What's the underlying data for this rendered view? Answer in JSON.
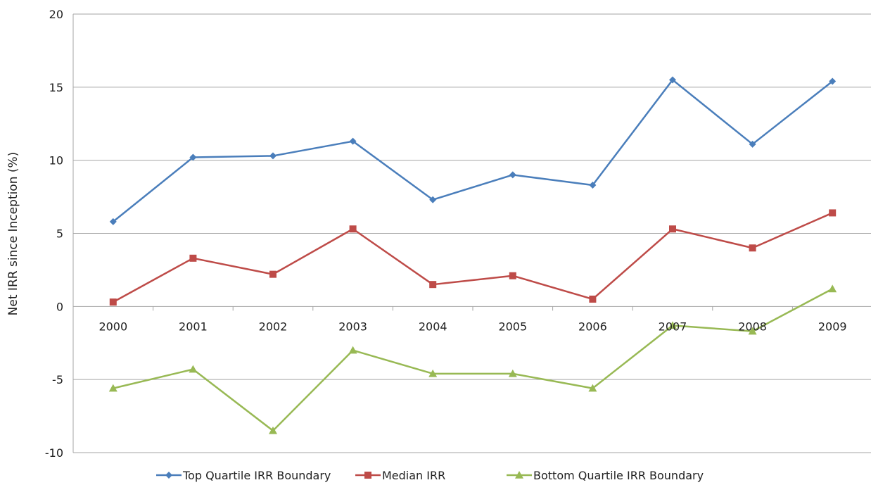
{
  "chart_data": {
    "type": "line",
    "title": "",
    "xlabel": "",
    "ylabel": "Net IRR since Inception (%)",
    "categories": [
      "2000",
      "2001",
      "2002",
      "2003",
      "2004",
      "2005",
      "2006",
      "2007",
      "2008",
      "2009"
    ],
    "ylim": [
      -10,
      20
    ],
    "yticks": [
      -10,
      -5,
      0,
      5,
      10,
      15,
      20
    ],
    "grid": "horizontal",
    "legend_position": "bottom",
    "series": [
      {
        "name": "Top Quartile IRR Boundary",
        "color": "#4a7ebb",
        "marker": "diamond",
        "values": [
          5.8,
          10.2,
          10.3,
          11.3,
          7.3,
          9.0,
          8.3,
          15.5,
          11.1,
          15.4
        ]
      },
      {
        "name": "Median IRR",
        "color": "#be4b48",
        "marker": "square",
        "values": [
          0.3,
          3.3,
          2.2,
          5.3,
          1.5,
          2.1,
          0.5,
          5.3,
          4.0,
          6.4
        ]
      },
      {
        "name": "Bottom Quartile IRR Boundary",
        "color": "#98b954",
        "marker": "triangle",
        "values": [
          -5.6,
          -4.3,
          -8.5,
          -3.0,
          -4.6,
          -4.6,
          -5.6,
          -1.3,
          -1.7,
          1.2
        ]
      }
    ]
  }
}
